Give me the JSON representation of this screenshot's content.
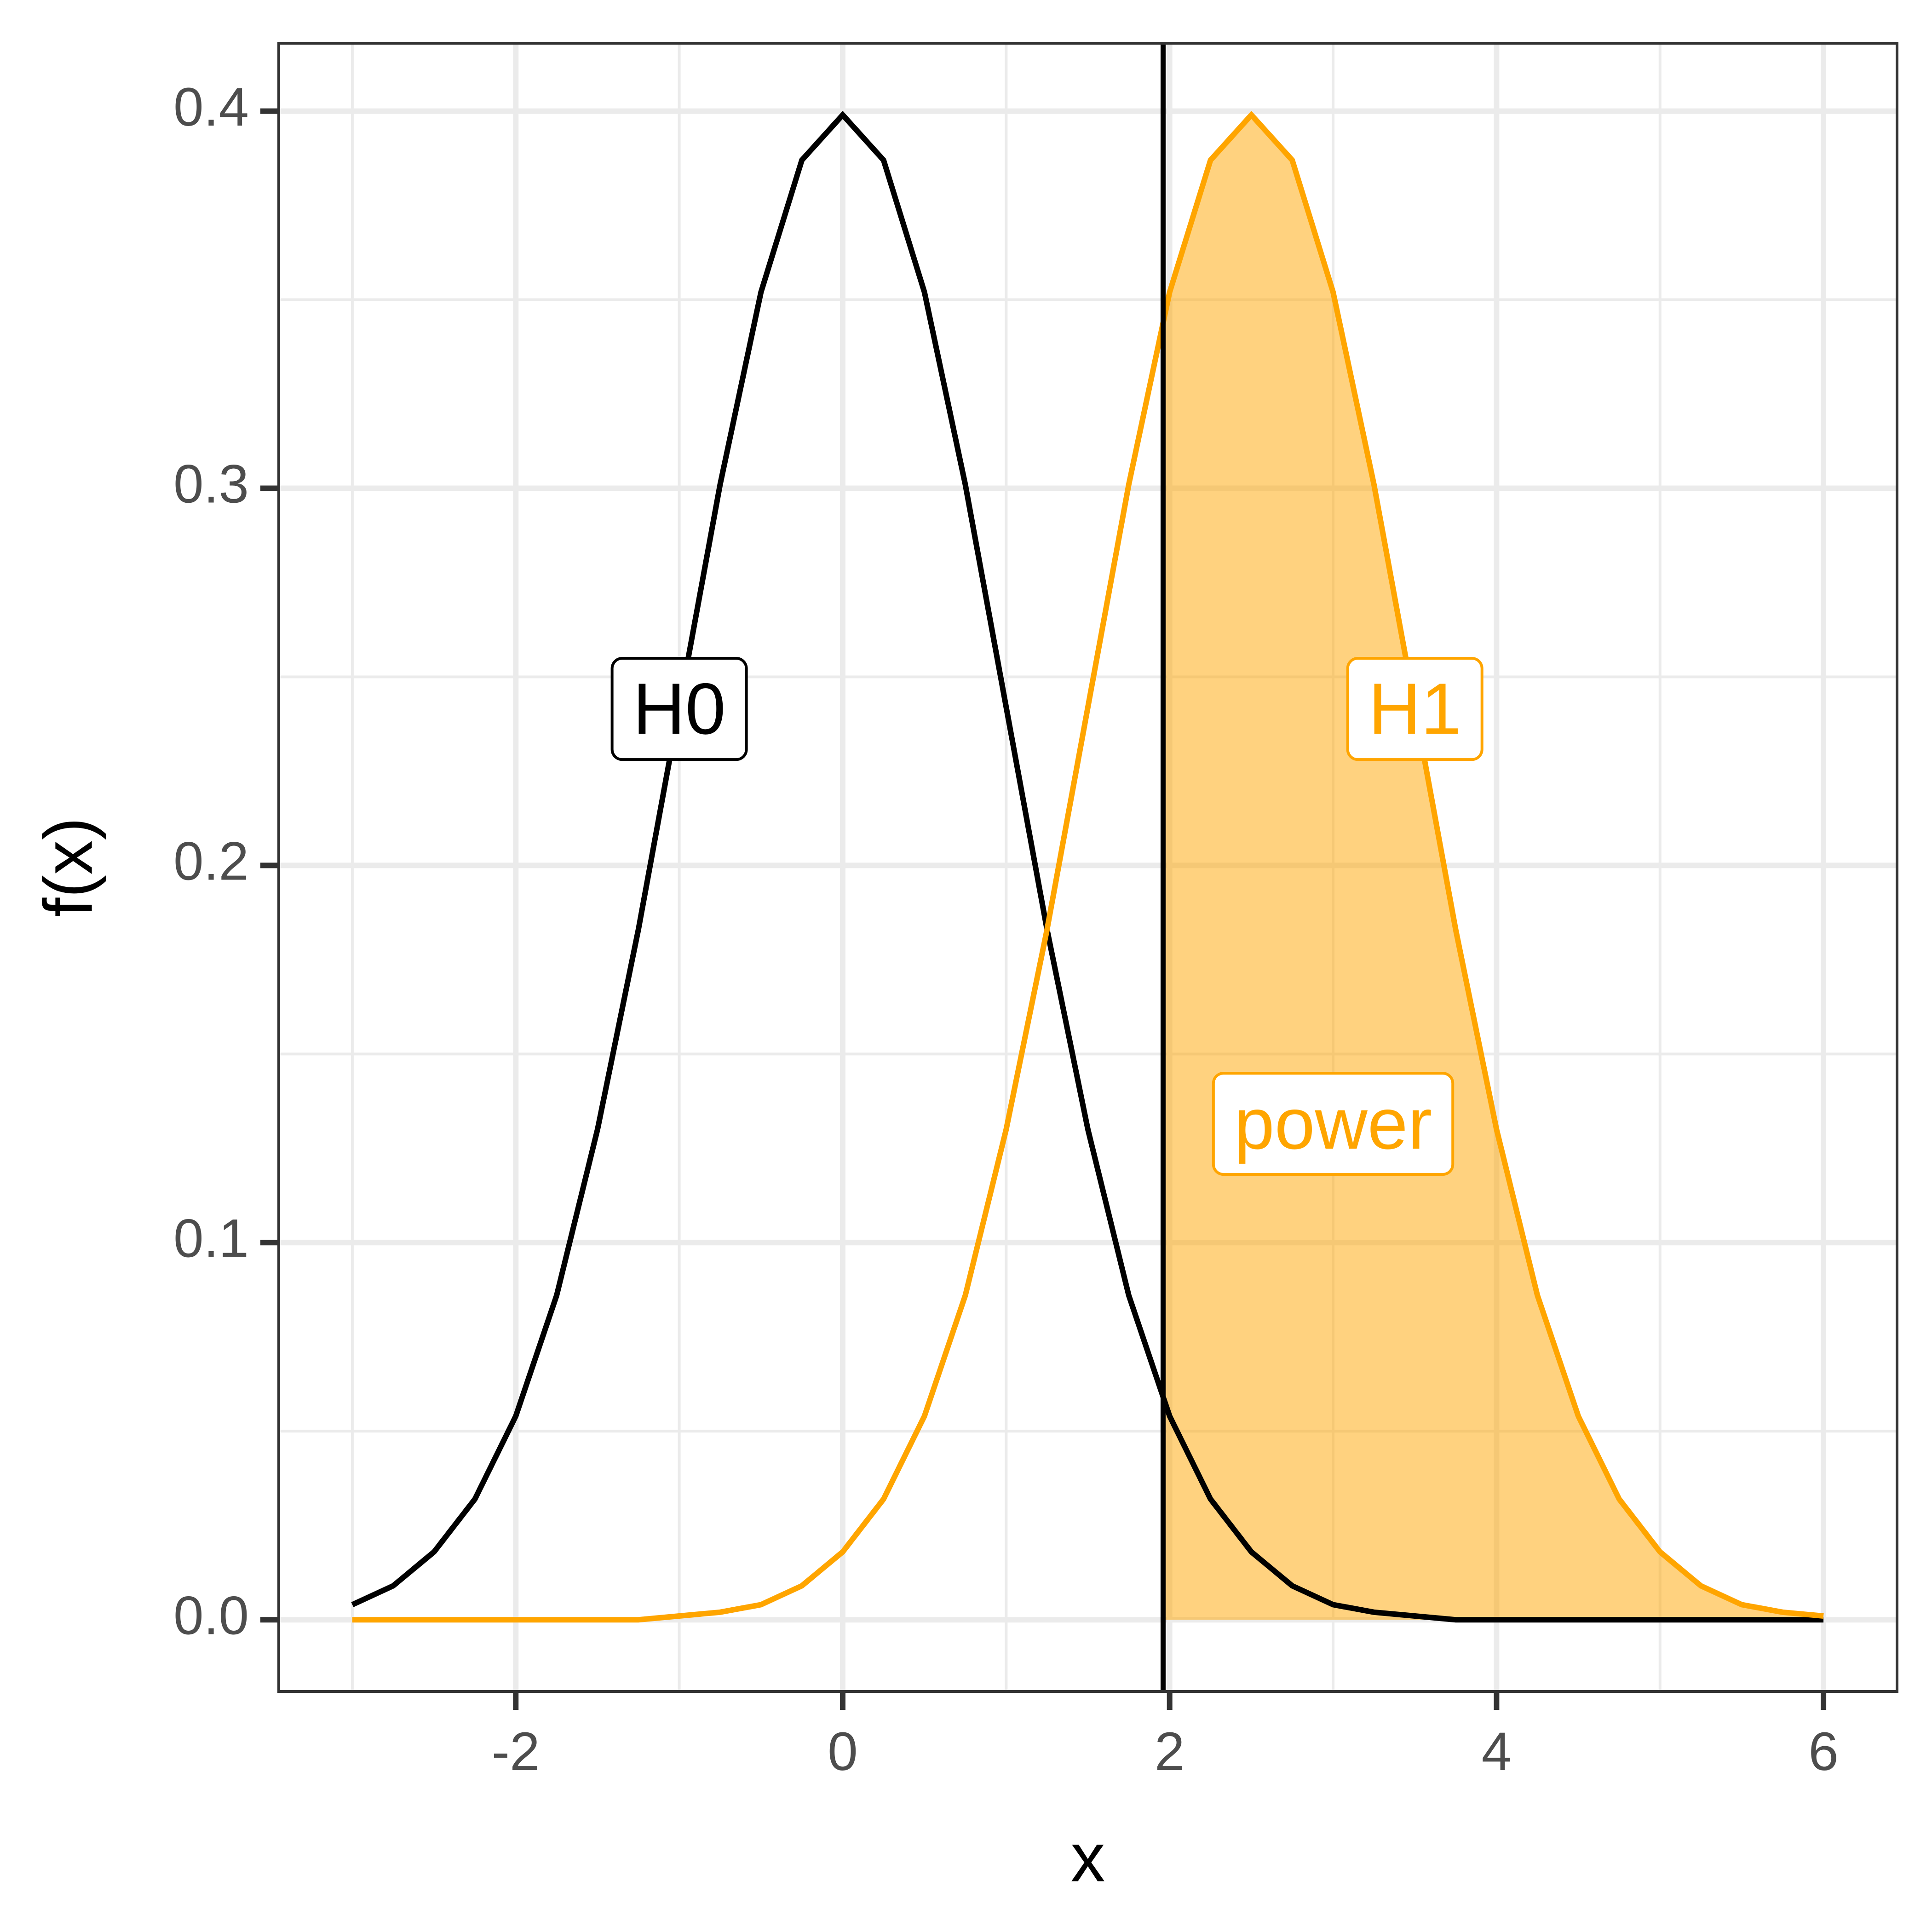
{
  "chart_data": {
    "type": "line",
    "x_label": "x",
    "y_label": "f(x)",
    "x": [
      -3,
      -2.75,
      -2.5,
      -2.25,
      -2,
      -1.75,
      -1.5,
      -1.25,
      -1,
      -0.75,
      -0.5,
      -0.25,
      0,
      0.25,
      0.5,
      0.75,
      1,
      1.25,
      1.5,
      1.75,
      2,
      2.25,
      2.5,
      2.75,
      3,
      3.25,
      3.5,
      3.75,
      4,
      4.25,
      4.5,
      4.75,
      5,
      5.25,
      5.5,
      5.75,
      6
    ],
    "series": [
      {
        "name": "H0",
        "color": "#000000",
        "label_x": -1,
        "label_y": 0.24,
        "values": [
          0.004,
          0.009,
          0.018,
          0.032,
          0.054,
          0.086,
          0.13,
          0.183,
          0.242,
          0.301,
          0.352,
          0.387,
          0.399,
          0.387,
          0.352,
          0.301,
          0.242,
          0.183,
          0.13,
          0.086,
          0.054,
          0.032,
          0.018,
          0.009,
          0.004,
          0.002,
          0.001,
          0,
          0,
          0,
          0,
          0,
          0,
          0,
          0,
          0,
          0
        ]
      },
      {
        "name": "H1",
        "color": "#ffa500",
        "label_x": 3.5,
        "label_y": 0.24,
        "values": [
          0,
          0,
          0,
          0,
          0,
          0,
          0,
          0,
          0.001,
          0.002,
          0.004,
          0.009,
          0.018,
          0.032,
          0.054,
          0.086,
          0.13,
          0.183,
          0.242,
          0.301,
          0.352,
          0.387,
          0.399,
          0.387,
          0.352,
          0.301,
          0.242,
          0.183,
          0.13,
          0.086,
          0.054,
          0.032,
          0.018,
          0.009,
          0.004,
          0.002,
          0.001
        ]
      }
    ],
    "critical_value": 1.96,
    "shade": {
      "series": 1,
      "color": "#ffa500",
      "opacity": 0.5
    },
    "annotations": [
      {
        "text": "power",
        "x": 3,
        "y": 0.13,
        "color": "#ffa500"
      }
    ],
    "xlim": [
      -3.45,
      6.45
    ],
    "xticks": [
      -2,
      0,
      2,
      4,
      6
    ],
    "x_minor_grid": [
      -3,
      -1,
      1,
      3,
      5
    ],
    "ylim": [
      -0.019,
      0.418
    ],
    "yticks": [
      {
        "value": 0,
        "label": "0.0"
      },
      0.1,
      0.2,
      0.3,
      0.4
    ],
    "y_minor_grid": [
      0.05,
      0.15,
      0.25,
      0.35
    ],
    "grid": true
  }
}
